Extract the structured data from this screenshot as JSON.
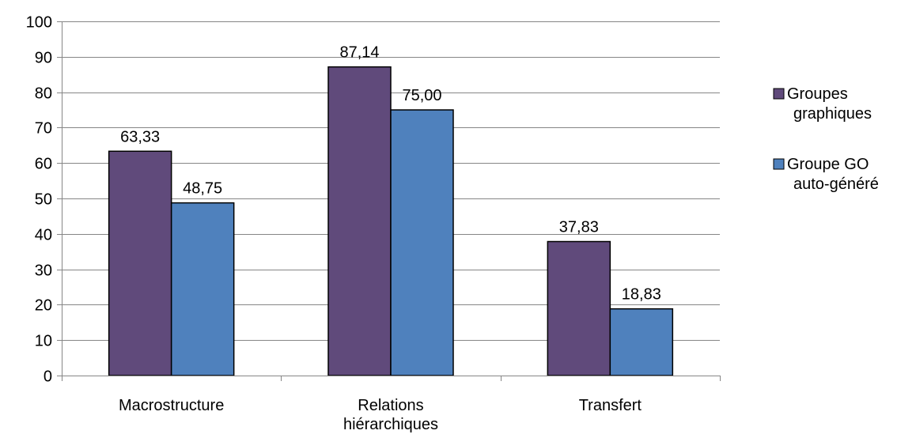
{
  "chart_data": {
    "type": "bar",
    "categories": [
      [
        "Macrostructure"
      ],
      [
        "Relations",
        "hiérarchiques"
      ],
      [
        "Transfert"
      ]
    ],
    "series": [
      {
        "name": [
          "Groupes",
          "graphiques"
        ],
        "color": "#604a7b",
        "values": [
          63.33,
          87.14,
          37.83
        ],
        "labels": [
          "63,33",
          "87,14",
          "37,83"
        ]
      },
      {
        "name": [
          "Groupe GO",
          "auto-généré"
        ],
        "color": "#4f81bd",
        "values": [
          48.75,
          75.0,
          18.83
        ],
        "labels": [
          "48,75",
          "75,00",
          "18,83"
        ]
      }
    ],
    "ylim": [
      0,
      100
    ],
    "yticks": [
      0,
      10,
      20,
      30,
      40,
      50,
      60,
      70,
      80,
      90,
      100
    ],
    "grid": true,
    "legend": "right",
    "title": "",
    "xlabel": "",
    "ylabel": ""
  }
}
